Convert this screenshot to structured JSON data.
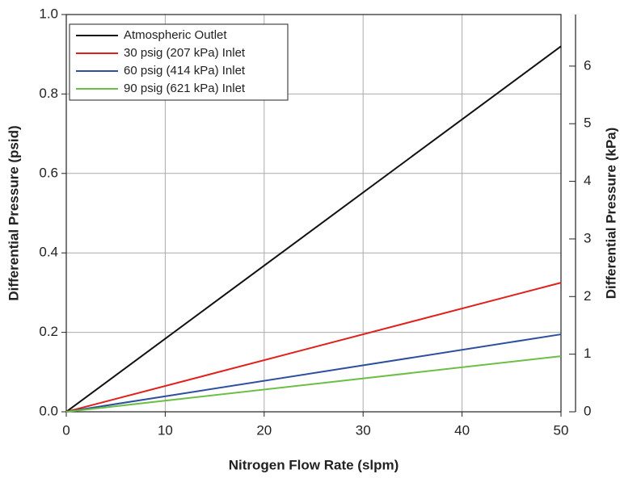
{
  "chart_data": {
    "type": "line",
    "xlabel": "Nitrogen Flow Rate (slpm)",
    "ylabel": "Differential Pressure (psid)",
    "y2label": "Differential Pressure (kPa)",
    "x": [
      0,
      50
    ],
    "series": [
      {
        "name": "Atmospheric Outlet",
        "color": "#111111",
        "values": [
          0,
          0.92
        ]
      },
      {
        "name": "30 psig (207 kPa) Inlet",
        "color": "#e0201b",
        "values": [
          0,
          0.325
        ]
      },
      {
        "name": "60 psig (414 kPa) Inlet",
        "color": "#2c4f9e",
        "values": [
          0,
          0.195
        ]
      },
      {
        "name": "90 psig (621 kPa) Inlet",
        "color": "#6cbf45",
        "values": [
          0,
          0.14
        ]
      }
    ],
    "xlim": [
      0,
      50
    ],
    "xticks": [
      0,
      10,
      20,
      30,
      40,
      50
    ],
    "ylim": [
      0,
      1.0
    ],
    "yticks": [
      {
        "value": 0,
        "label": "0.0"
      },
      0.2,
      0.4,
      0.6,
      0.8,
      {
        "value": 1.0,
        "label": "1.0"
      }
    ],
    "y2lim": [
      0,
      6.895
    ],
    "y2ticks": [
      0,
      1,
      2,
      3,
      4,
      5,
      6
    ],
    "grid": true,
    "legend": "upper left"
  }
}
